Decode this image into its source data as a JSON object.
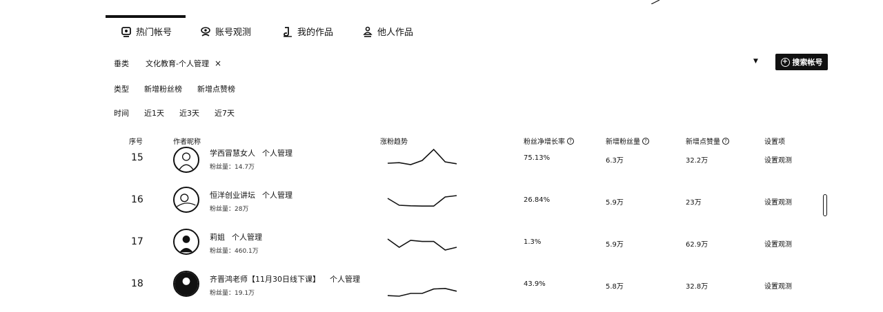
{
  "tabs": [
    {
      "label": "热门帐号",
      "icon": "hot-account-icon"
    },
    {
      "label": "账号观测",
      "icon": "observe-icon"
    },
    {
      "label": "我的作品",
      "icon": "my-works-icon"
    },
    {
      "label": "他人作品",
      "icon": "others-works-icon"
    }
  ],
  "filters": {
    "category": {
      "label": "垂类",
      "selected": "文化教育-个人管理",
      "clear": "×"
    },
    "type": {
      "label": "类型",
      "options": [
        "新增粉丝榜",
        "新增点赞榜"
      ]
    },
    "time": {
      "label": "时间",
      "options": [
        "近1天",
        "近3天",
        "近7天"
      ]
    }
  },
  "search_button": {
    "label": "搜索帐号"
  },
  "table": {
    "headers": {
      "rank": "序号",
      "author": "作者昵称",
      "trend": "涨粉趋势",
      "growth_rate": "粉丝净增长率",
      "new_fans": "新增粉丝量",
      "new_likes": "新增点赞量",
      "settings": "设置项"
    },
    "rows": [
      {
        "rank": "15",
        "name": "学西冒慧女人",
        "category": "个人管理",
        "fans": "粉丝量：14.7万",
        "growth_rate": "75.13%",
        "new_fans": "6.3万",
        "new_likes": "32.2万",
        "action": "设置观测",
        "trend": [
          3,
          3.2,
          2.5,
          4,
          8,
          3.5,
          2.8
        ]
      },
      {
        "rank": "16",
        "name": "恒洋创业讲坛",
        "category": "个人管理",
        "fans": "粉丝量：28万",
        "growth_rate": "26.84%",
        "new_fans": "5.9万",
        "new_likes": "23万",
        "action": "设置观测",
        "trend": [
          6,
          3.5,
          3.3,
          3.2,
          3.2,
          6.5,
          7
        ]
      },
      {
        "rank": "17",
        "name": "莉姐",
        "category": "个人管理",
        "fans": "粉丝量：460.1万",
        "growth_rate": "1.3%",
        "new_fans": "5.9万",
        "new_likes": "62.9万",
        "action": "设置观测",
        "trend": [
          6.5,
          3.5,
          6,
          5.6,
          5.6,
          2.5,
          3.5
        ]
      },
      {
        "rank": "18",
        "name": "齐晋鸿老师【11月30日线下课】",
        "category": "个人管理",
        "fans": "粉丝量：19.1万",
        "growth_rate": "43.9%",
        "new_fans": "5.8万",
        "new_likes": "32.8万",
        "action": "设置观测",
        "trend": [
          1.2,
          1,
          2,
          2,
          3.6,
          3.8,
          2.8
        ]
      }
    ]
  }
}
